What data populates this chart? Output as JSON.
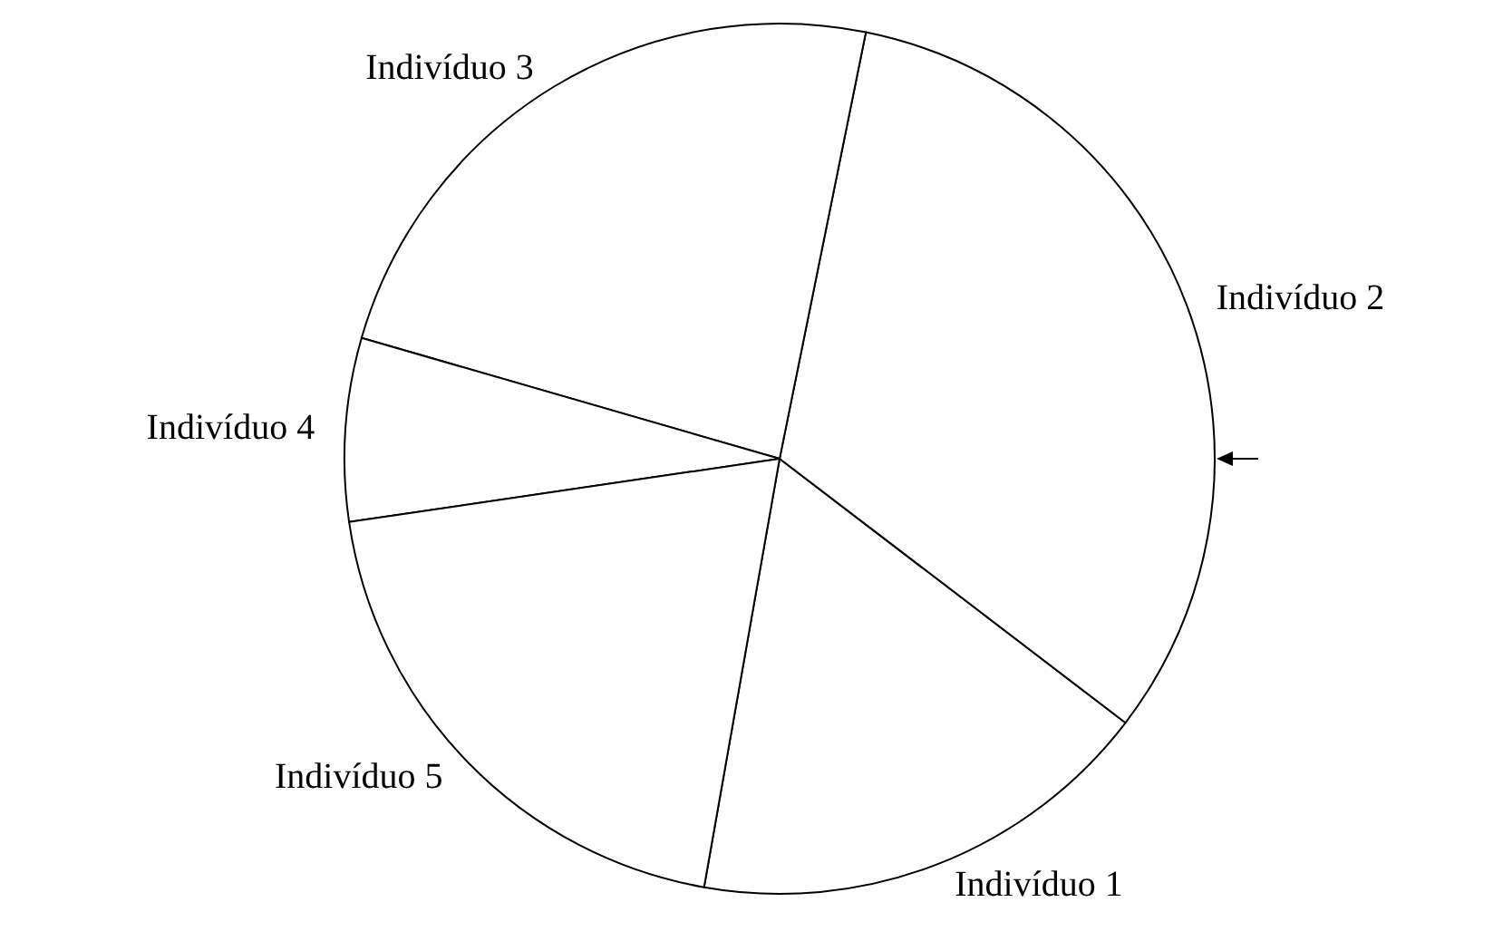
{
  "chart_data": {
    "type": "pie",
    "categories": [
      "Indivíduo 1",
      "Indivíduo 2",
      "Indivíduo 3",
      "Indivíduo 4",
      "Indivíduo 5"
    ],
    "values": [
      17.4,
      32.2,
      23.7,
      6.8,
      19.9
    ],
    "colors": [
      "#ffffff",
      "#ffffff",
      "#ffffff",
      "#ffffff",
      "#ffffff"
    ]
  }
}
